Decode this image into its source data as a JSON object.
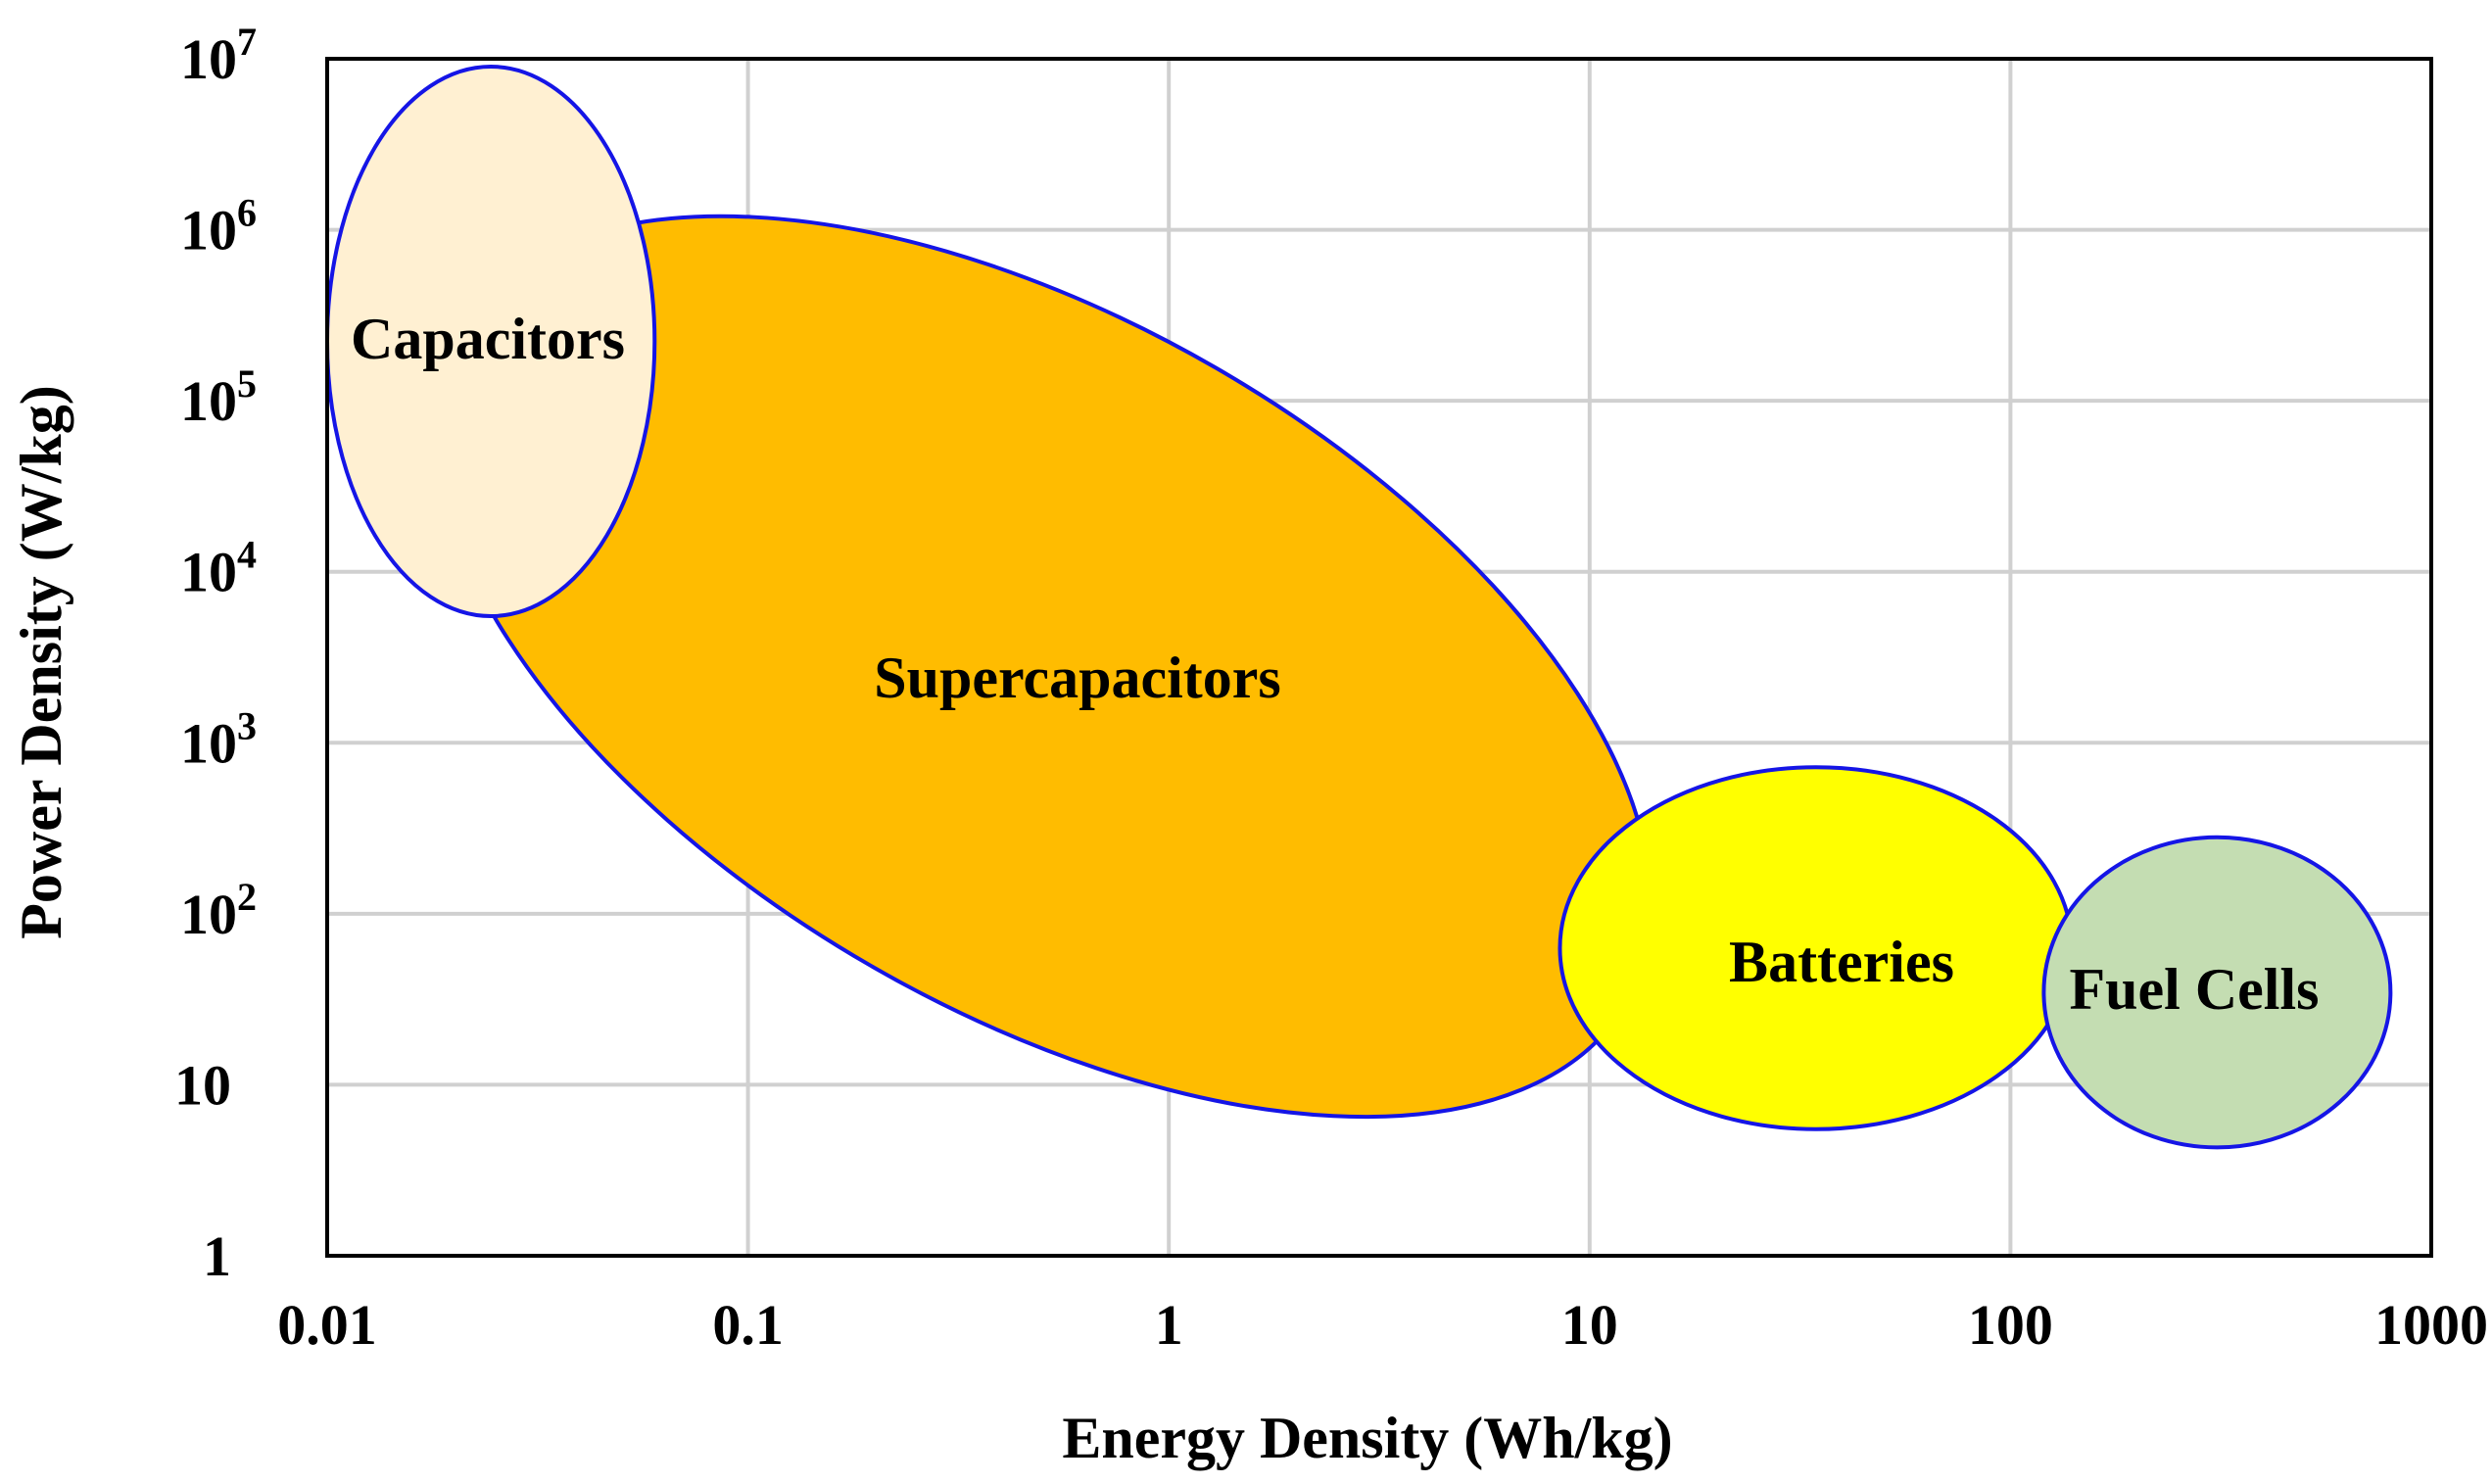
{
  "chart_data": {
    "type": "region-ellipse",
    "title": "",
    "xlabel": "Energy Density (Wh/kg)",
    "ylabel": "Power Density (W/kg)",
    "x_scale": "log",
    "y_scale": "log",
    "xlim": [
      0.01,
      1000
    ],
    "ylim": [
      1,
      10000000
    ],
    "grid": true,
    "x_ticks": [
      {
        "value": 0.01,
        "label": "0.01"
      },
      {
        "value": 0.1,
        "label": "0.1"
      },
      {
        "value": 1,
        "label": "1"
      },
      {
        "value": 10,
        "label": "10"
      },
      {
        "value": 100,
        "label": "100"
      },
      {
        "value": 1000,
        "label": "1000"
      }
    ],
    "y_ticks": [
      {
        "value": 1,
        "base": "1",
        "exp": ""
      },
      {
        "value": 10,
        "base": "10",
        "exp": ""
      },
      {
        "value": 100,
        "base": "10",
        "exp": "2"
      },
      {
        "value": 1000,
        "base": "10",
        "exp": "3"
      },
      {
        "value": 10000,
        "base": "10",
        "exp": "4"
      },
      {
        "value": 100000,
        "base": "10",
        "exp": "5"
      },
      {
        "value": 1000000,
        "base": "10",
        "exp": "6"
      },
      {
        "value": 10000000,
        "base": "10",
        "exp": "7"
      }
    ],
    "regions": [
      {
        "name": "Supercapacitors",
        "x_range": [
          0.018,
          14
        ],
        "y_range": [
          6.5,
          1200000
        ],
        "color": "#ffbc00",
        "stroke": "#1515e6",
        "rotate": 30
      },
      {
        "name": "Batteries",
        "x_range": [
          8.5,
          140
        ],
        "y_range": [
          5.5,
          720
        ],
        "color": "#ffff00",
        "stroke": "#1515e6",
        "rotate": 0
      },
      {
        "name": "Fuel Cells",
        "x_range": [
          120,
          800
        ],
        "y_range": [
          4.3,
          280
        ],
        "color": "#c4ddb2",
        "stroke": "#1515e6",
        "rotate": 0
      },
      {
        "name": "Capacitors",
        "x_range": [
          0.01,
          0.06
        ],
        "y_range": [
          5500,
          9000000
        ],
        "color": "#fff0d2",
        "stroke": "#1515e6",
        "rotate": 0
      }
    ]
  }
}
